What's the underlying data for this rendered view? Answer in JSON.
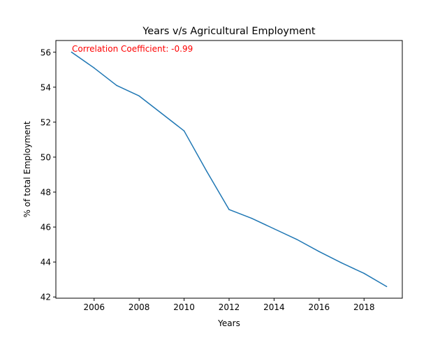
{
  "chart_data": {
    "type": "line",
    "title": "Years v/s Agricultural Employment",
    "xlabel": "Years",
    "ylabel": "% of total Employment",
    "xlim": [
      2004.3,
      2019.7
    ],
    "ylim": [
      41.93,
      56.67
    ],
    "x_ticks": [
      2006,
      2008,
      2010,
      2012,
      2014,
      2016,
      2018
    ],
    "y_ticks": [
      42,
      44,
      46,
      48,
      50,
      52,
      54,
      56
    ],
    "grid": false,
    "annotation": {
      "text": "Correlation Coefficient: -0.99",
      "color": "#ff0000"
    },
    "series": [
      {
        "color": "#1f77b4",
        "x": [
          2005,
          2006,
          2007,
          2008,
          2009,
          2010,
          2011,
          2012,
          2013,
          2014,
          2015,
          2016,
          2017,
          2018,
          2019
        ],
        "y": [
          56.0,
          55.1,
          54.1,
          53.5,
          52.5,
          51.5,
          49.2,
          47.0,
          46.5,
          45.9,
          45.3,
          44.6,
          43.95,
          43.35,
          42.6
        ]
      }
    ]
  }
}
